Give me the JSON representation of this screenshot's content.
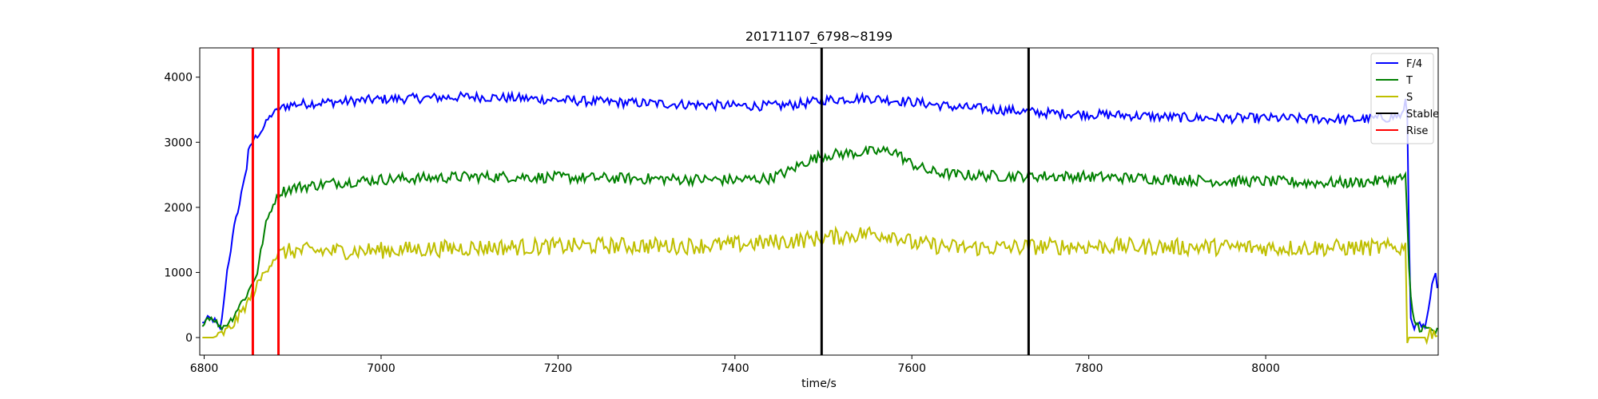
{
  "chart_data": {
    "type": "line",
    "title": "20171107_6798~8199",
    "xlabel": "time/s",
    "ylabel": "",
    "xlim": [
      6795,
      8195
    ],
    "ylim": [
      -270,
      4450
    ],
    "grid": false,
    "legend_placement": "top-right",
    "x_ticks": [
      6800,
      7000,
      7200,
      7400,
      7600,
      7800,
      8000
    ],
    "y_ticks": [
      0,
      1000,
      2000,
      3000,
      4000
    ],
    "series": [
      {
        "name": "F/4",
        "color": "#0000ff",
        "points": [
          [
            6798,
            220
          ],
          [
            6805,
            300
          ],
          [
            6812,
            260
          ],
          [
            6818,
            120
          ],
          [
            6822,
            500
          ],
          [
            6825,
            950
          ],
          [
            6830,
            1350
          ],
          [
            6834,
            1700
          ],
          [
            6838,
            1950
          ],
          [
            6840,
            2050
          ],
          [
            6845,
            2450
          ],
          [
            6848,
            2600
          ],
          [
            6850,
            2850
          ],
          [
            6853,
            2950
          ],
          [
            6856,
            3050
          ],
          [
            6860,
            3100
          ],
          [
            6866,
            3200
          ],
          [
            6872,
            3350
          ],
          [
            6878,
            3450
          ],
          [
            6884,
            3500
          ],
          [
            6890,
            3550
          ],
          [
            6900,
            3580
          ],
          [
            6920,
            3600
          ],
          [
            6950,
            3620
          ],
          [
            7000,
            3660
          ],
          [
            7050,
            3680
          ],
          [
            7100,
            3700
          ],
          [
            7150,
            3680
          ],
          [
            7200,
            3650
          ],
          [
            7250,
            3620
          ],
          [
            7300,
            3600
          ],
          [
            7350,
            3580
          ],
          [
            7400,
            3560
          ],
          [
            7450,
            3560
          ],
          [
            7480,
            3600
          ],
          [
            7500,
            3650
          ],
          [
            7550,
            3680
          ],
          [
            7600,
            3620
          ],
          [
            7650,
            3540
          ],
          [
            7700,
            3500
          ],
          [
            7750,
            3450
          ],
          [
            7800,
            3430
          ],
          [
            7850,
            3410
          ],
          [
            7900,
            3380
          ],
          [
            7950,
            3370
          ],
          [
            8000,
            3370
          ],
          [
            8050,
            3360
          ],
          [
            8100,
            3350
          ],
          [
            8140,
            3380
          ],
          [
            8155,
            3420
          ],
          [
            8158,
            3600
          ],
          [
            8160,
            3450
          ],
          [
            8162,
            1500
          ],
          [
            8164,
            300
          ],
          [
            8170,
            150
          ],
          [
            8175,
            200
          ],
          [
            8180,
            100
          ],
          [
            8183,
            300
          ],
          [
            8186,
            600
          ],
          [
            8189,
            850
          ],
          [
            8192,
            950
          ],
          [
            8194,
            700
          ]
        ],
        "noise": 75
      },
      {
        "name": "T",
        "color": "#008000",
        "points": [
          [
            6798,
            220
          ],
          [
            6805,
            320
          ],
          [
            6812,
            280
          ],
          [
            6818,
            150
          ],
          [
            6825,
            200
          ],
          [
            6832,
            300
          ],
          [
            6840,
            500
          ],
          [
            6848,
            650
          ],
          [
            6855,
            850
          ],
          [
            6860,
            1000
          ],
          [
            6865,
            1400
          ],
          [
            6870,
            1750
          ],
          [
            6875,
            1950
          ],
          [
            6880,
            2100
          ],
          [
            6885,
            2200
          ],
          [
            6890,
            2250
          ],
          [
            6900,
            2300
          ],
          [
            6950,
            2380
          ],
          [
            7000,
            2430
          ],
          [
            7050,
            2450
          ],
          [
            7100,
            2470
          ],
          [
            7150,
            2470
          ],
          [
            7200,
            2460
          ],
          [
            7250,
            2450
          ],
          [
            7300,
            2440
          ],
          [
            7350,
            2430
          ],
          [
            7400,
            2420
          ],
          [
            7440,
            2450
          ],
          [
            7460,
            2550
          ],
          [
            7480,
            2700
          ],
          [
            7500,
            2800
          ],
          [
            7550,
            2850
          ],
          [
            7580,
            2870
          ],
          [
            7595,
            2700
          ],
          [
            7620,
            2550
          ],
          [
            7650,
            2500
          ],
          [
            7700,
            2480
          ],
          [
            7750,
            2480
          ],
          [
            7800,
            2470
          ],
          [
            7850,
            2450
          ],
          [
            7900,
            2430
          ],
          [
            7950,
            2400
          ],
          [
            8000,
            2400
          ],
          [
            8050,
            2380
          ],
          [
            8100,
            2380
          ],
          [
            8140,
            2420
          ],
          [
            8155,
            2450
          ],
          [
            8158,
            2500
          ],
          [
            8162,
            1000
          ],
          [
            8165,
            400
          ],
          [
            8170,
            200
          ],
          [
            8180,
            130
          ],
          [
            8190,
            110
          ],
          [
            8194,
            80
          ]
        ],
        "noise": 85
      },
      {
        "name": "S",
        "color": "#bfbf00",
        "points": [
          [
            6798,
            0
          ],
          [
            6810,
            0
          ],
          [
            6820,
            50
          ],
          [
            6830,
            150
          ],
          [
            6838,
            300
          ],
          [
            6845,
            450
          ],
          [
            6852,
            600
          ],
          [
            6858,
            750
          ],
          [
            6864,
            900
          ],
          [
            6870,
            1050
          ],
          [
            6878,
            1200
          ],
          [
            6885,
            1300
          ],
          [
            6900,
            1330
          ],
          [
            6950,
            1330
          ],
          [
            7000,
            1340
          ],
          [
            7050,
            1360
          ],
          [
            7100,
            1380
          ],
          [
            7150,
            1390
          ],
          [
            7200,
            1400
          ],
          [
            7250,
            1410
          ],
          [
            7300,
            1410
          ],
          [
            7350,
            1410
          ],
          [
            7400,
            1430
          ],
          [
            7450,
            1470
          ],
          [
            7500,
            1530
          ],
          [
            7550,
            1600
          ],
          [
            7580,
            1580
          ],
          [
            7600,
            1450
          ],
          [
            7650,
            1380
          ],
          [
            7700,
            1380
          ],
          [
            7750,
            1400
          ],
          [
            7800,
            1400
          ],
          [
            7850,
            1400
          ],
          [
            7900,
            1390
          ],
          [
            7950,
            1390
          ],
          [
            8000,
            1380
          ],
          [
            8050,
            1380
          ],
          [
            8100,
            1380
          ],
          [
            8150,
            1380
          ],
          [
            8158,
            1380
          ],
          [
            8160,
            0
          ],
          [
            8170,
            0
          ],
          [
            8180,
            0
          ],
          [
            8185,
            80
          ],
          [
            8190,
            110
          ],
          [
            8194,
            50
          ]
        ],
        "noise": 130
      }
    ],
    "vertical_lines": [
      {
        "name": "Stable",
        "color": "#000000",
        "x": [
          7498,
          7732
        ]
      },
      {
        "name": "Rise",
        "color": "#ff0000",
        "x": [
          6855,
          6884
        ]
      }
    ],
    "legend": [
      "F/4",
      "T",
      "S",
      "Stable",
      "Rise"
    ]
  }
}
